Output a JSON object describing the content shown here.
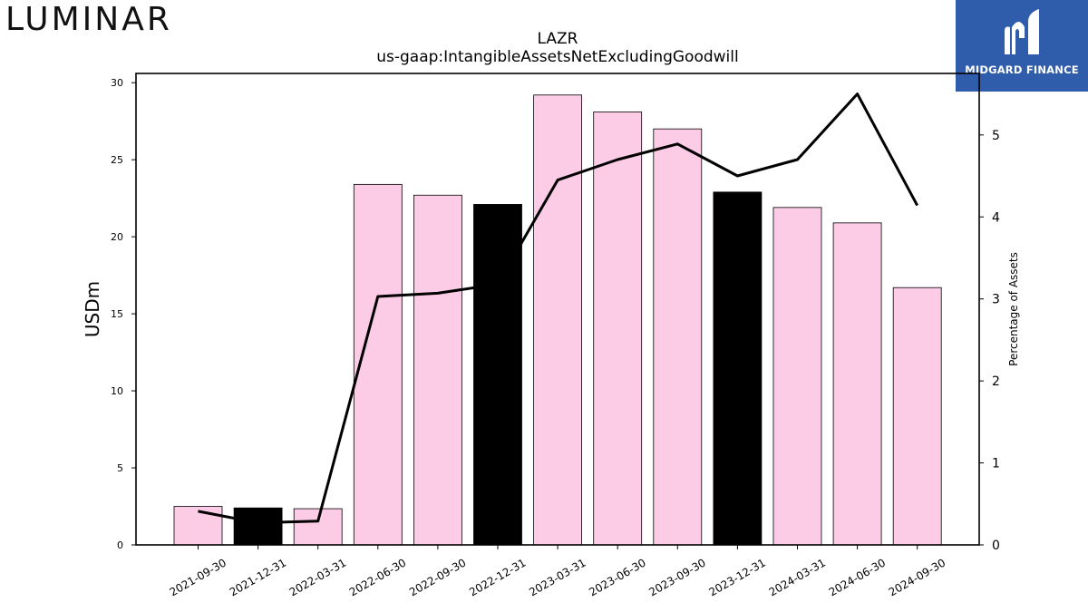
{
  "brand": {
    "logo_text": "LUMINAR"
  },
  "watermark": {
    "text": "MIDGARD FINANCE",
    "icon": "midgard-logo-icon",
    "background": "#2f5cab"
  },
  "chart_data": {
    "type": "bar",
    "title": "LAZR",
    "subtitle": "us-gaap:IntangibleAssetsNetExcludingGoodwill",
    "ylabel": "USDm",
    "y2label": "Percentage of Assets",
    "categories": [
      "2021-09-30",
      "2021-12-31",
      "2022-03-31",
      "2022-06-30",
      "2022-09-30",
      "2022-12-31",
      "2023-03-31",
      "2023-06-30",
      "2023-09-30",
      "2023-12-31",
      "2024-03-31",
      "2024-06-30",
      "2024-09-30"
    ],
    "series": [
      {
        "type": "bar",
        "axis": "left",
        "values": [
          2.5,
          2.4,
          2.35,
          23.4,
          22.7,
          22.1,
          29.2,
          28.1,
          27.0,
          22.9,
          21.9,
          20.9,
          16.7
        ]
      },
      {
        "type": "line",
        "axis": "right",
        "values": [
          0.41,
          0.27,
          0.29,
          3.03,
          3.07,
          3.18,
          4.45,
          4.7,
          4.89,
          4.5,
          4.7,
          5.5,
          4.14
        ]
      }
    ],
    "bar_color": "#fccbe6",
    "bar_highlight_color": "#000000",
    "highlight_categories": [
      "2021-12-31",
      "2022-12-31",
      "2023-12-31"
    ],
    "line_color": "#000000",
    "ylim": [
      0,
      30.6
    ],
    "yticks": [
      0,
      5,
      10,
      15,
      20,
      25,
      30
    ],
    "y2lim": [
      0,
      5.75
    ],
    "y2ticks": [
      0,
      1,
      2,
      3,
      4,
      5
    ],
    "grid": false,
    "legend": "none"
  }
}
